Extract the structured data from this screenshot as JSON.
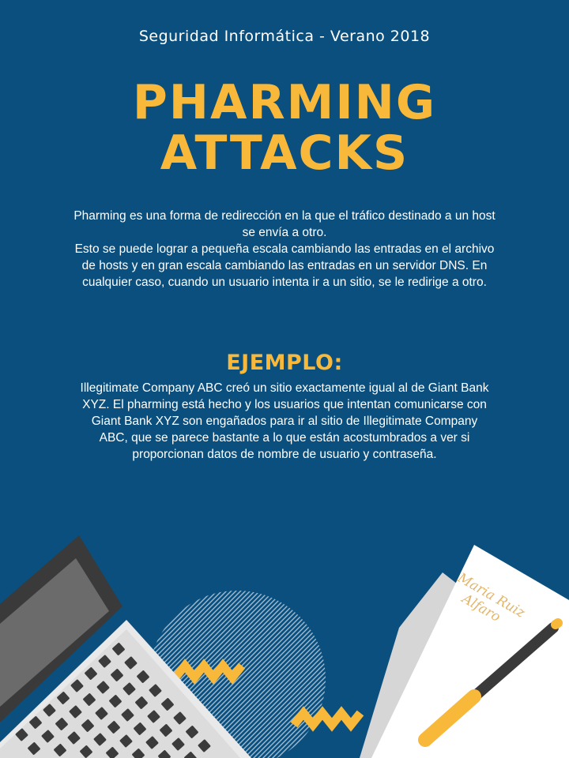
{
  "header": {
    "subtitle": "Seguridad Informática - Verano 2018"
  },
  "title": {
    "line1": "PHARMING",
    "line2": "ATTACKS"
  },
  "intro": {
    "line1": "Pharming es una forma de redirección en la que el tráfico destinado a un host se envía a otro.",
    "line2": "Esto se puede lograr a pequeña escala cambiando las entradas en el archivo de hosts y en gran escala cambiando las entradas en un servidor DNS. En cualquier caso, cuando un usuario intenta ir a un sitio, se le redirige a otro."
  },
  "example": {
    "heading": "EJEMPLO:",
    "text": "Illegitimate Company ABC creó un sitio exactamente igual al de Giant Bank XYZ. El pharming está hecho y los usuarios que intentan comunicarse con Giant Bank XYZ son engañados para ir al sitio de Illegitimate Company ABC, que se parece bastante a lo que están acostumbrados a ver si proporcionan datos de nombre de usuario y contraseña."
  },
  "decoration": {
    "signature": "Maria Ruiz Alfaro"
  },
  "colors": {
    "background": "#0a4f7d",
    "accent": "#f8b83a",
    "text": "#ffffff",
    "laptop_body": "#e9e9e9",
    "laptop_frame": "#3a3a3a"
  },
  "icons": [
    "laptop-illustration",
    "paper-illustration",
    "pen-icon",
    "striped-circle-decoration",
    "zigzag-decoration"
  ]
}
